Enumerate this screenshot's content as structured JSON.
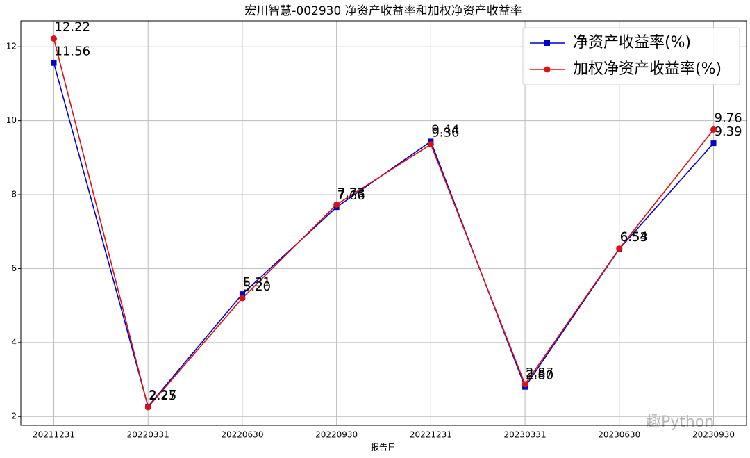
{
  "chart_data": {
    "type": "line",
    "title": "宏川智慧-002930 净资产收益率和加权净资产收益率",
    "xlabel": "报告日",
    "watermark": "趣Python",
    "categories": [
      "20211231",
      "20220331",
      "20220630",
      "20220930",
      "20221231",
      "20230331",
      "20230630",
      "20230930"
    ],
    "series": [
      {
        "name": "净资产收益率(%)",
        "color": "#0000cc",
        "marker": "square",
        "values": [
          11.56,
          2.27,
          5.31,
          7.66,
          9.44,
          2.8,
          6.53,
          9.39
        ],
        "value_labels": [
          "11.56",
          "2.27",
          "5.31",
          "7.66",
          "9.44",
          "2.80",
          "6.53",
          "9.39"
        ]
      },
      {
        "name": "加权净资产收益率(%)",
        "color": "#dd1111",
        "marker": "circle",
        "values": [
          12.22,
          2.25,
          5.2,
          7.73,
          9.36,
          2.87,
          6.54,
          9.76
        ],
        "value_labels": [
          "12.22",
          "2.25",
          "5.20",
          "7.73",
          "9.36",
          "2.87",
          "6.54",
          "9.76"
        ]
      }
    ],
    "ylim": [
      1.76,
      12.7
    ],
    "yticks": [
      2,
      4,
      6,
      8,
      10,
      12
    ],
    "grid": true,
    "legend": "upper right"
  }
}
